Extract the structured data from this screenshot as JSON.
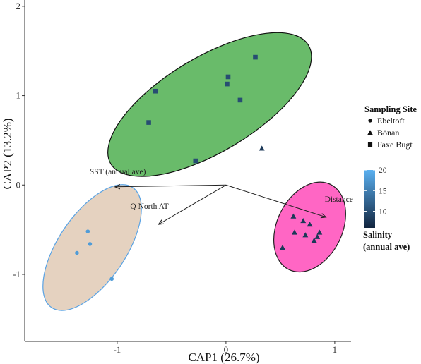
{
  "chart_data": {
    "type": "scatter",
    "xlabel": "CAP1 (26.7%)",
    "ylabel": "CAP2 (13.2%)",
    "xlim": [
      -1.85,
      1.15
    ],
    "ylim": [
      -1.75,
      2.07
    ],
    "x_ticks": [
      -1,
      0,
      1
    ],
    "x_tick_labels": [
      "-1",
      "0",
      "1"
    ],
    "y_ticks": [
      -1,
      0,
      1,
      2
    ],
    "y_tick_labels": [
      "-1",
      "0",
      "1",
      "2"
    ],
    "grid": false,
    "shape_legend": {
      "title": "Sampling Site",
      "position": "right",
      "entries": [
        {
          "label": "Ebeltoft",
          "shape": "circle"
        },
        {
          "label": "Bönan",
          "shape": "triangle"
        },
        {
          "label": "Faxe Bugt",
          "shape": "square"
        }
      ]
    },
    "color_legend": {
      "title_lines": [
        "Salinity",
        "(annual ave)"
      ],
      "position": "right",
      "ticks": [
        10,
        15,
        20
      ],
      "tick_labels": [
        "10",
        "15",
        "20"
      ],
      "range": [
        6,
        20
      ],
      "low_color": "#12253f",
      "high_color": "#5ab0f0"
    },
    "ellipses": [
      {
        "group": "Faxe Bugt",
        "cx": -0.15,
        "cy": 0.9,
        "rx": 1.06,
        "ry": 0.53,
        "angle_deg": 31,
        "fill": "#69bb6a",
        "stroke": "#111111"
      },
      {
        "group": "Ebeltoft",
        "cx": -1.23,
        "cy": -0.7,
        "rx": 0.31,
        "ry": 0.81,
        "angle_deg": -34,
        "fill": "#e5d2c0",
        "stroke": "#5aa3e4"
      },
      {
        "group": "Bönan",
        "cx": 0.77,
        "cy": -0.47,
        "rx": 0.3,
        "ry": 0.53,
        "angle_deg": -26,
        "fill": "#ff66c4",
        "stroke": "#222222"
      }
    ],
    "series": [
      {
        "name": "Ebeltoft",
        "shape": "circle",
        "points": [
          {
            "x": -1.27,
            "y": -0.52,
            "salinity": 18
          },
          {
            "x": -1.25,
            "y": -0.66,
            "salinity": 18
          },
          {
            "x": -1.37,
            "y": -0.76,
            "salinity": 18
          },
          {
            "x": -1.05,
            "y": -1.05,
            "salinity": 18
          }
        ]
      },
      {
        "name": "Bönan",
        "shape": "triangle",
        "points": [
          {
            "x": 0.33,
            "y": 0.41,
            "salinity": 8
          },
          {
            "x": 0.62,
            "y": -0.35,
            "salinity": 8
          },
          {
            "x": 0.71,
            "y": -0.4,
            "salinity": 8
          },
          {
            "x": 0.77,
            "y": -0.44,
            "salinity": 8
          },
          {
            "x": 0.63,
            "y": -0.53,
            "salinity": 8
          },
          {
            "x": 0.73,
            "y": -0.56,
            "salinity": 8
          },
          {
            "x": 0.86,
            "y": -0.53,
            "salinity": 8
          },
          {
            "x": 0.84,
            "y": -0.58,
            "salinity": 8
          },
          {
            "x": 0.81,
            "y": -0.62,
            "salinity": 8
          },
          {
            "x": 0.52,
            "y": -0.7,
            "salinity": 8
          }
        ]
      },
      {
        "name": "Faxe Bugt",
        "shape": "square",
        "points": [
          {
            "x": 0.27,
            "y": 1.43,
            "salinity": 10
          },
          {
            "x": 0.02,
            "y": 1.21,
            "salinity": 10
          },
          {
            "x": 0.01,
            "y": 1.13,
            "salinity": 10
          },
          {
            "x": -0.65,
            "y": 1.05,
            "salinity": 10
          },
          {
            "x": 0.13,
            "y": 0.95,
            "salinity": 10
          },
          {
            "x": -0.71,
            "y": 0.7,
            "salinity": 10
          },
          {
            "x": -0.28,
            "y": 0.27,
            "salinity": 10
          }
        ]
      }
    ],
    "vectors": [
      {
        "label": "SST (annual ave)",
        "x": -1.02,
        "y": -0.02
      },
      {
        "label": "Q North AT",
        "x": -0.62,
        "y": -0.44
      },
      {
        "label": "Distance",
        "x": 0.92,
        "y": -0.36
      }
    ]
  }
}
